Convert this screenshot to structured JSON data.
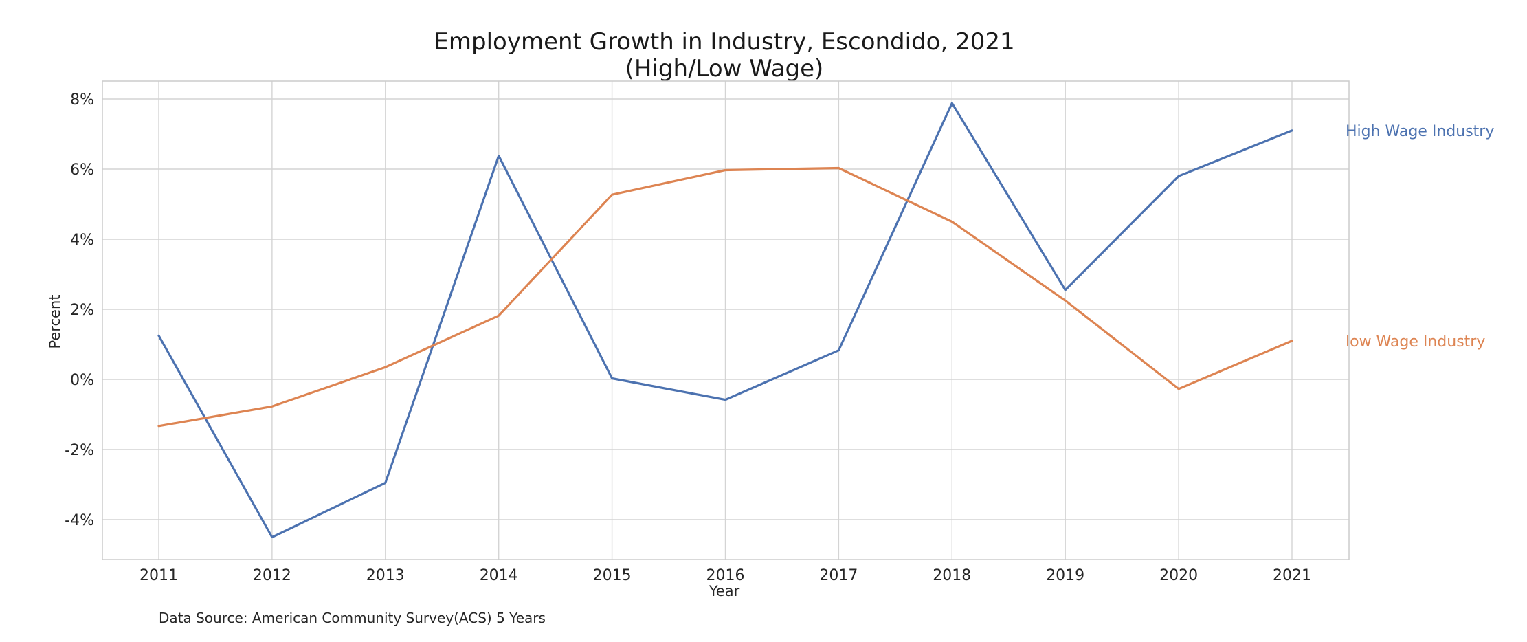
{
  "chart_data": {
    "type": "line",
    "title": "Employment Growth in Industry, Escondido, 2021",
    "subtitle": "(High/Low Wage)",
    "xlabel": "Year",
    "ylabel": "Percent",
    "x": [
      2011,
      2012,
      2013,
      2014,
      2015,
      2016,
      2017,
      2018,
      2019,
      2020,
      2021
    ],
    "x_tick_labels": [
      "2011",
      "2012",
      "2013",
      "2014",
      "2015",
      "2016",
      "2017",
      "2018",
      "2019",
      "2020",
      "2021"
    ],
    "y_ticks": [
      8,
      6,
      4,
      2,
      0,
      -2,
      -4
    ],
    "y_tick_labels": [
      "8%",
      "6%",
      "4%",
      "2%",
      "0%",
      "-2%",
      "-4%"
    ],
    "ylim": [
      -5.1,
      8.5
    ],
    "grid": true,
    "legend_placement": "right, at line ends",
    "series": [
      {
        "name": "High Wage Industry",
        "color": "#4c72b0",
        "values": [
          1.25,
          -4.5,
          -2.95,
          6.38,
          0.03,
          -0.58,
          0.83,
          7.88,
          2.55,
          5.8,
          7.1
        ]
      },
      {
        "name": "low Wage Industry",
        "color": "#dd8452",
        "values": [
          -1.33,
          -0.77,
          0.35,
          1.82,
          5.27,
          5.97,
          6.03,
          4.5,
          2.25,
          -0.27,
          1.1
        ]
      }
    ],
    "source_note": "Data Source: American Community Survey(ACS) 5 Years"
  }
}
